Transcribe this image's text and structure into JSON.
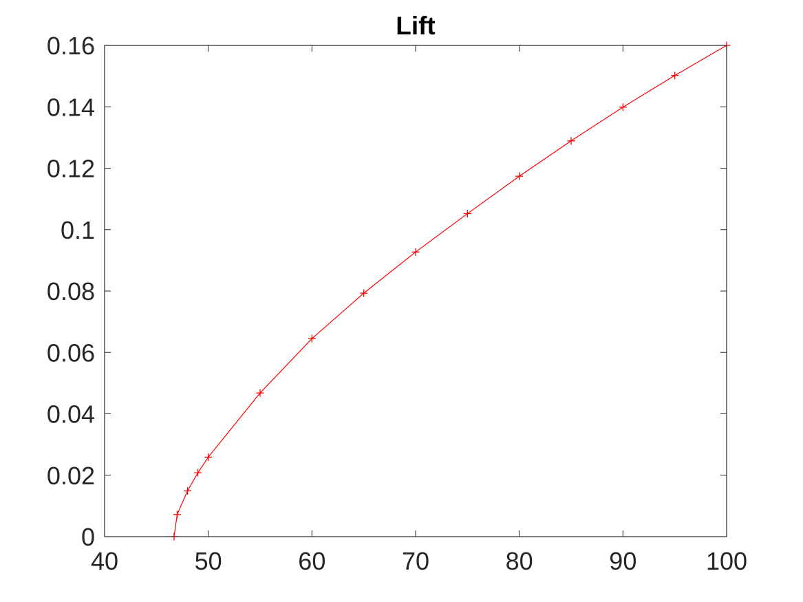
{
  "chart_data": {
    "type": "line",
    "title": "Lift",
    "xlabel": "",
    "ylabel": "",
    "xlim": [
      40,
      100
    ],
    "ylim": [
      0,
      0.16
    ],
    "x_ticks": [
      40,
      50,
      60,
      70,
      80,
      90,
      100
    ],
    "x_tick_labels": [
      "40",
      "50",
      "60",
      "70",
      "80",
      "90",
      "100"
    ],
    "y_ticks": [
      0,
      0.02,
      0.04,
      0.06,
      0.08,
      0.1,
      0.12,
      0.14,
      0.16
    ],
    "y_tick_labels": [
      "0",
      "0.02",
      "0.04",
      "0.06",
      "0.08",
      "0.1",
      "0.12",
      "0.14",
      "0.16"
    ],
    "grid": false,
    "marker": "plus",
    "colors": {
      "series": "#ff0000",
      "axes": "#262626",
      "background": "#ffffff"
    },
    "series": [
      {
        "x": [
          46.7,
          47,
          48,
          49,
          50,
          55,
          60,
          65,
          70,
          75,
          80,
          85,
          90,
          95,
          100
        ],
        "y": [
          0,
          0.0072,
          0.0149,
          0.0208,
          0.0259,
          0.0468,
          0.0645,
          0.0793,
          0.0927,
          0.1052,
          0.1174,
          0.1289,
          0.1399,
          0.1502,
          0.16
        ]
      }
    ]
  }
}
